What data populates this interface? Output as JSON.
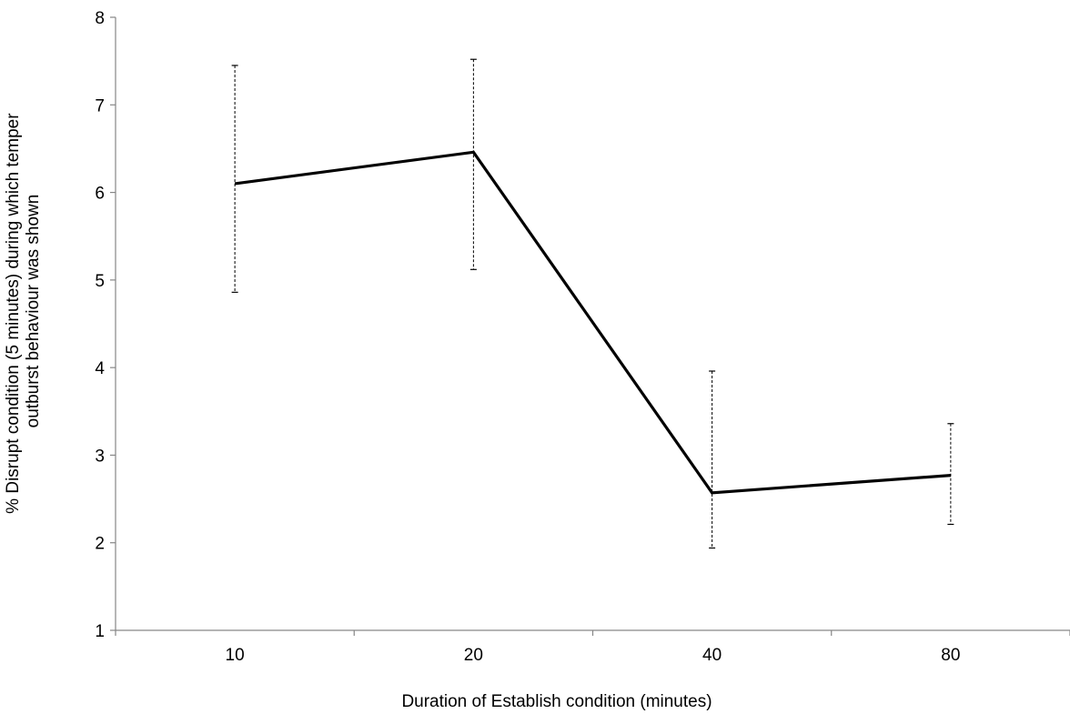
{
  "chart_data": {
    "type": "line",
    "title": "",
    "xlabel": "Duration of Establish condition (minutes)",
    "ylabel_lines": [
      "% Disrupt condition (5 minutes) during which temper",
      "outburst behaviour was shown"
    ],
    "categories": [
      "10",
      "20",
      "40",
      "80"
    ],
    "ylim": [
      1,
      8
    ],
    "yticks": [
      1,
      2,
      3,
      4,
      5,
      6,
      7,
      8
    ],
    "grid": false,
    "legend": "none",
    "series": [
      {
        "values": [
          6.1,
          6.46,
          2.57,
          2.77
        ],
        "error_low": [
          4.86,
          5.12,
          1.94,
          2.21
        ],
        "error_high": [
          7.45,
          7.52,
          3.96,
          3.36
        ],
        "color": "#000000"
      }
    ]
  }
}
